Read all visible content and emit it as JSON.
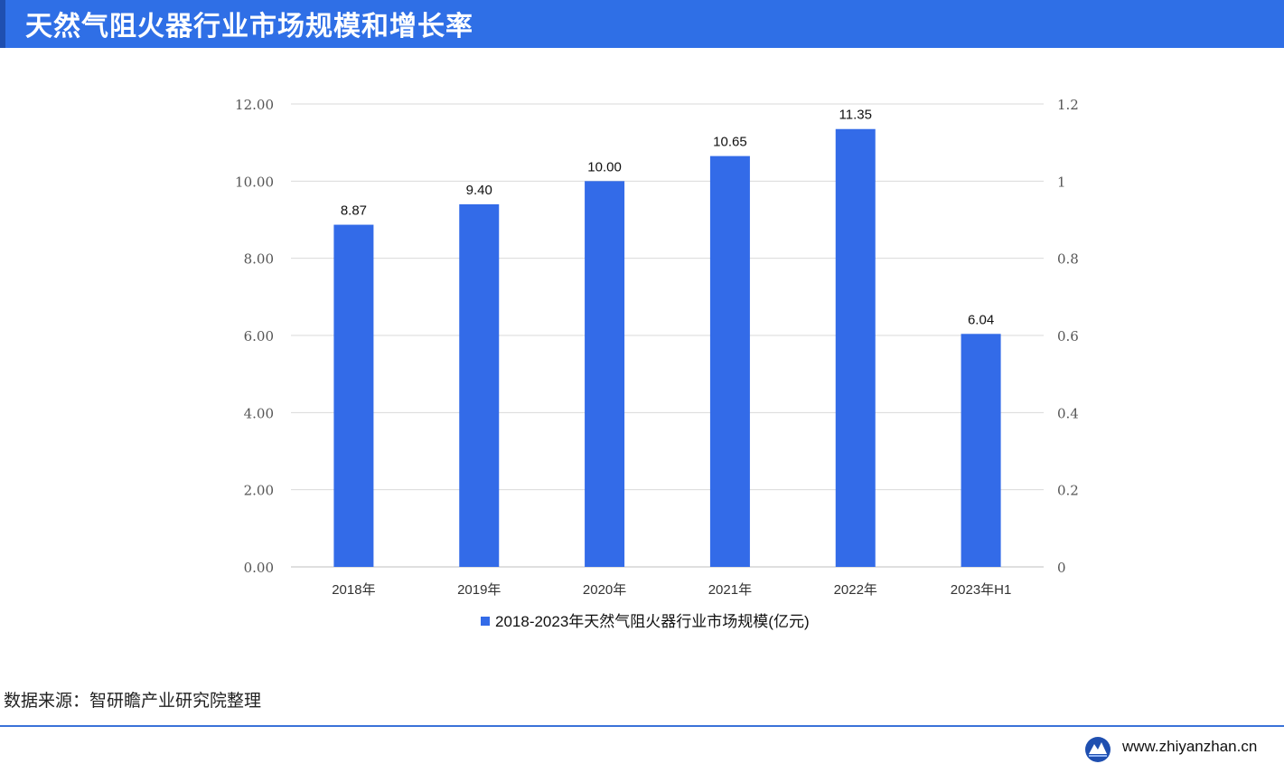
{
  "header": {
    "title": "天然气阻火器行业市场规模和增长率"
  },
  "chart_data": {
    "type": "bar",
    "categories": [
      "2018年",
      "2019年",
      "2020年",
      "2021年",
      "2022年",
      "2023年H1"
    ],
    "series": [
      {
        "name": "2018-2023年天然气阻火器行业市场规模(亿元)",
        "values": [
          8.87,
          9.4,
          10.0,
          10.65,
          11.35,
          6.04
        ]
      }
    ],
    "data_labels": [
      "8.87",
      "9.40",
      "10.00",
      "10.65",
      "11.35",
      "6.04"
    ],
    "y_left": {
      "ylim": [
        0,
        12
      ],
      "ticks": [
        "0.00",
        "2.00",
        "4.00",
        "6.00",
        "8.00",
        "10.00",
        "12.00"
      ]
    },
    "y_right": {
      "ylim": [
        0,
        1.2
      ],
      "ticks": [
        "0",
        "0.2",
        "0.4",
        "0.6",
        "0.8",
        "1",
        "1.2"
      ]
    },
    "grid": true,
    "legend_position": "bottom",
    "bar_color": "#336be8"
  },
  "footer": {
    "source": "数据来源：智研瞻产业研究院整理",
    "website": "www.zhiyanzhan.cn"
  }
}
